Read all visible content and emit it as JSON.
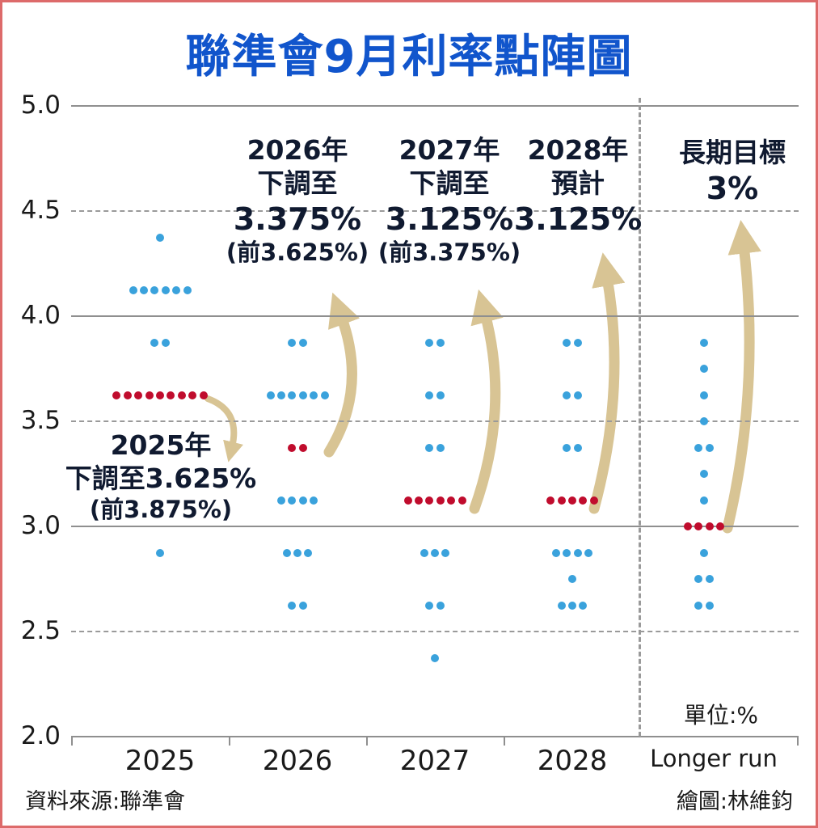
{
  "page": {
    "title": "聯準會9月利率點陣圖",
    "unit": "單位:%",
    "source": "資料來源:聯準會",
    "credit": "繪圖:林維鈞"
  },
  "colors": {
    "title": "#1155cc",
    "blue_dot": "#3aa2dc",
    "red_dot": "#c00c2d",
    "arrow": "#d8c494",
    "annotation": "#101a30",
    "axis_text": "#1a1a1a",
    "grid": "#8f8f8f",
    "border": "#dd6a6a"
  },
  "chart_data": {
    "type": "scatter",
    "title": "聯準會9月利率點陣圖",
    "xlabel": "",
    "ylabel": "%",
    "ylim": [
      2.0,
      5.0
    ],
    "grid": {
      "solid": [
        5.0,
        4.0,
        3.0,
        2.0
      ],
      "dashed": [
        4.5,
        3.5,
        2.5
      ]
    },
    "ytick_labels": [
      "5.0",
      "4.5",
      "4.0",
      "3.5",
      "3.0",
      "2.5",
      "2.0"
    ],
    "categories": [
      "2025",
      "2026",
      "2027",
      "2028",
      "Longer run"
    ],
    "series": [
      {
        "category": "2025",
        "dots": [
          {
            "rate": 4.375,
            "count": 1,
            "color": "blue"
          },
          {
            "rate": 4.125,
            "count": 6,
            "color": "blue"
          },
          {
            "rate": 3.875,
            "count": 2,
            "color": "blue"
          },
          {
            "rate": 3.625,
            "count": 9,
            "color": "red"
          },
          {
            "rate": 2.875,
            "count": 1,
            "color": "blue"
          }
        ]
      },
      {
        "category": "2026",
        "dots": [
          {
            "rate": 3.875,
            "count": 2,
            "color": "blue"
          },
          {
            "rate": 3.625,
            "count": 6,
            "color": "blue"
          },
          {
            "rate": 3.375,
            "count": 2,
            "color": "red"
          },
          {
            "rate": 3.125,
            "count": 4,
            "color": "blue"
          },
          {
            "rate": 2.875,
            "count": 3,
            "color": "blue"
          },
          {
            "rate": 2.625,
            "count": 2,
            "color": "blue"
          }
        ]
      },
      {
        "category": "2027",
        "dots": [
          {
            "rate": 3.875,
            "count": 2,
            "color": "blue"
          },
          {
            "rate": 3.625,
            "count": 2,
            "color": "blue"
          },
          {
            "rate": 3.375,
            "count": 2,
            "color": "blue"
          },
          {
            "rate": 3.125,
            "count": 6,
            "color": "red"
          },
          {
            "rate": 2.875,
            "count": 3,
            "color": "blue"
          },
          {
            "rate": 2.625,
            "count": 2,
            "color": "blue"
          },
          {
            "rate": 2.375,
            "count": 1,
            "color": "blue"
          }
        ]
      },
      {
        "category": "2028",
        "dots": [
          {
            "rate": 3.875,
            "count": 2,
            "color": "blue"
          },
          {
            "rate": 3.625,
            "count": 2,
            "color": "blue"
          },
          {
            "rate": 3.375,
            "count": 2,
            "color": "blue"
          },
          {
            "rate": 3.125,
            "count": 5,
            "color": "red"
          },
          {
            "rate": 2.875,
            "count": 4,
            "color": "blue"
          },
          {
            "rate": 2.75,
            "count": 1,
            "color": "blue"
          },
          {
            "rate": 2.625,
            "count": 3,
            "color": "blue"
          }
        ]
      },
      {
        "category": "Longer run",
        "dots": [
          {
            "rate": 3.875,
            "count": 1,
            "color": "blue"
          },
          {
            "rate": 3.75,
            "count": 1,
            "color": "blue"
          },
          {
            "rate": 3.625,
            "count": 1,
            "color": "blue"
          },
          {
            "rate": 3.5,
            "count": 1,
            "color": "blue"
          },
          {
            "rate": 3.375,
            "count": 2,
            "color": "blue"
          },
          {
            "rate": 3.25,
            "count": 1,
            "color": "blue"
          },
          {
            "rate": 3.125,
            "count": 1,
            "color": "blue"
          },
          {
            "rate": 3.0,
            "count": 4,
            "color": "red"
          },
          {
            "rate": 2.875,
            "count": 1,
            "color": "blue"
          },
          {
            "rate": 2.75,
            "count": 2,
            "color": "blue"
          },
          {
            "rate": 2.625,
            "count": 2,
            "color": "blue"
          }
        ]
      }
    ],
    "annotations": [
      {
        "id": "ann-2025",
        "lines": [
          "2025年",
          "下調至3.625%",
          "(前3.875%)"
        ]
      },
      {
        "id": "ann-2026",
        "lines": [
          "2026年",
          "下調至",
          "3.375%",
          "(前3.625%)"
        ]
      },
      {
        "id": "ann-2027",
        "lines": [
          "2027年",
          "下調至",
          "3.125%",
          "(前3.375%)"
        ]
      },
      {
        "id": "ann-2028",
        "lines": [
          "2028年",
          "預計",
          "3.125%"
        ]
      },
      {
        "id": "ann-longer",
        "lines": [
          "長期目標",
          "3%"
        ]
      }
    ],
    "legend_position": "none"
  }
}
